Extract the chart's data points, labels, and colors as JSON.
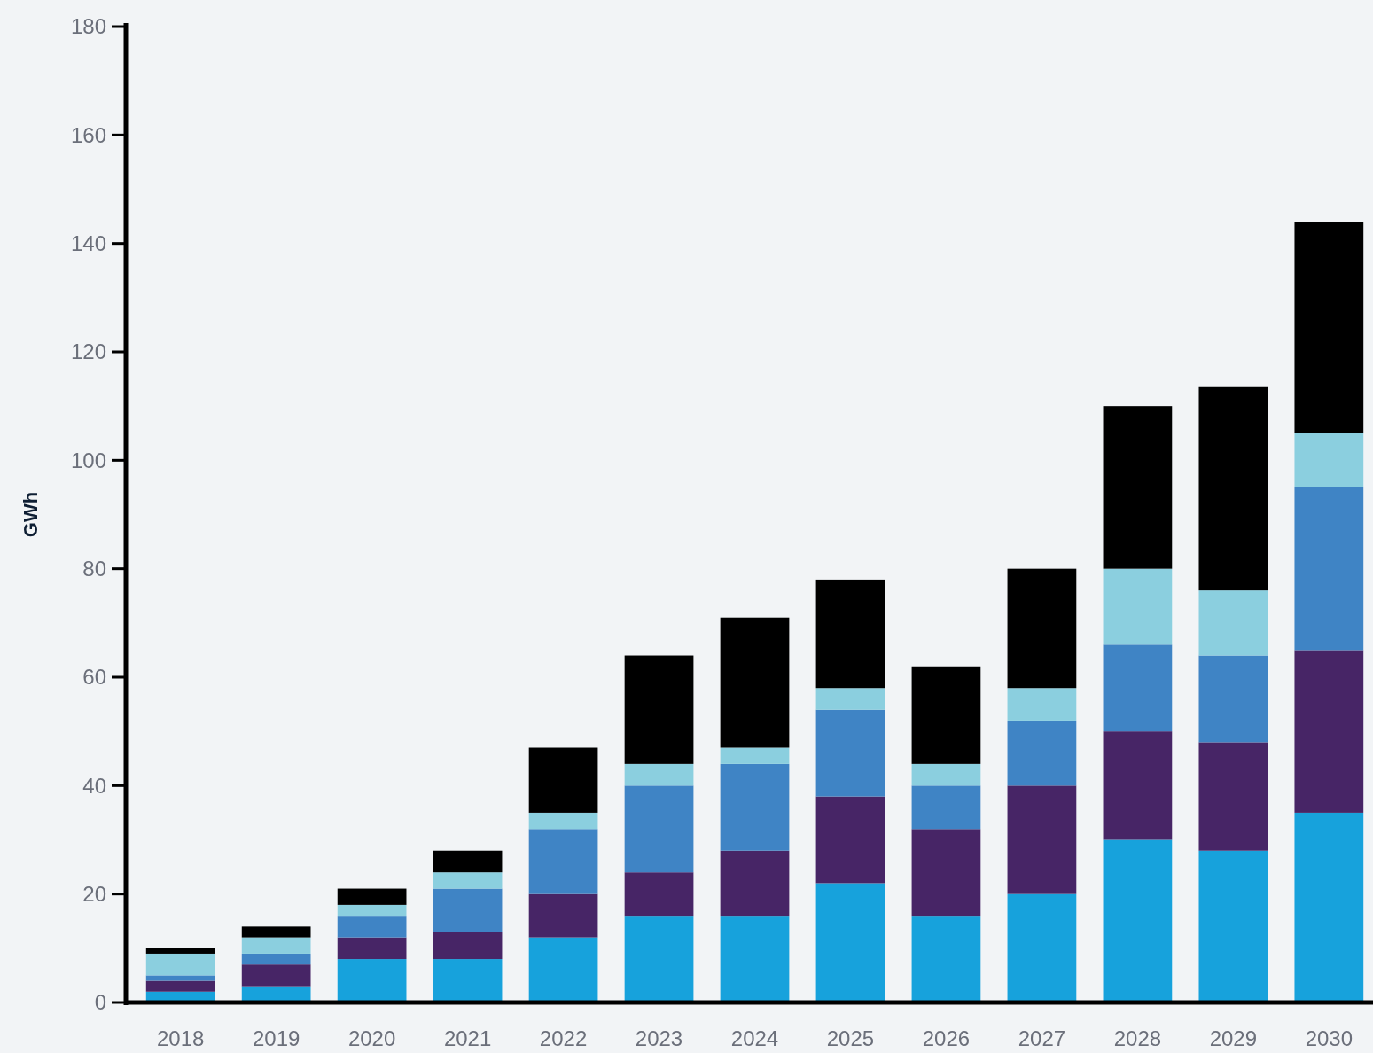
{
  "chart_data": {
    "type": "bar",
    "stacked": true,
    "ylabel": "GWh",
    "categories": [
      "2018",
      "2019",
      "2020",
      "2021",
      "2022",
      "2023",
      "2024",
      "2025",
      "2026",
      "2027",
      "2028",
      "2029",
      "2030"
    ],
    "series": [
      {
        "color": "#17a2dc",
        "values": [
          2,
          3,
          8,
          8,
          12,
          16,
          16,
          22,
          16,
          20,
          30,
          28,
          35
        ]
      },
      {
        "color": "#472566",
        "values": [
          2,
          4,
          4,
          5,
          8,
          8,
          12,
          16,
          16,
          20,
          20,
          20,
          30
        ]
      },
      {
        "color": "#3f84c5",
        "values": [
          1,
          2,
          4,
          8,
          12,
          16,
          16,
          16,
          8,
          12,
          16,
          16,
          30
        ]
      },
      {
        "color": "#8bcfdf",
        "values": [
          4,
          3,
          2,
          3,
          3,
          4,
          3,
          4,
          4,
          6,
          14,
          12,
          10
        ]
      },
      {
        "color": "#000000",
        "values": [
          1,
          2,
          3,
          4,
          12,
          20,
          24,
          20,
          18,
          22,
          30,
          37.5,
          39
        ]
      }
    ],
    "ylim": [
      0,
      180
    ],
    "yticks": [
      0,
      20,
      40,
      60,
      80,
      100,
      120,
      140,
      160,
      180
    ],
    "grid": false
  }
}
